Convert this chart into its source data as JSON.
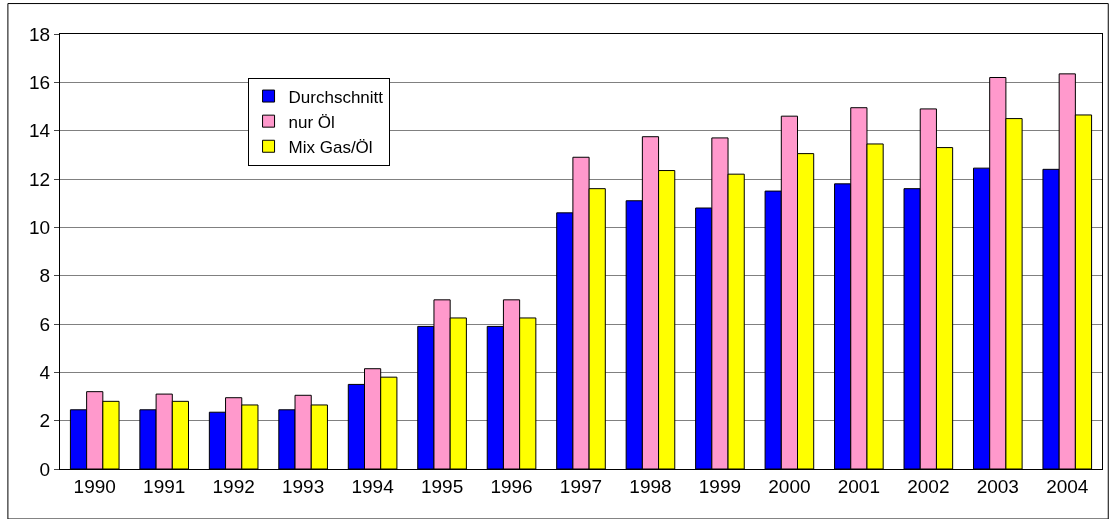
{
  "chart_data": {
    "type": "bar",
    "categories": [
      "1990",
      "1991",
      "1992",
      "1993",
      "1994",
      "1995",
      "1996",
      "1997",
      "1998",
      "1999",
      "2000",
      "2001",
      "2002",
      "2003",
      "2004"
    ],
    "series": [
      {
        "name": "Durchschnitt",
        "color": "#0000ff",
        "values": [
          2.45,
          2.45,
          2.35,
          2.45,
          3.5,
          5.9,
          5.9,
          10.6,
          11.1,
          10.8,
          11.5,
          11.8,
          11.6,
          12.45,
          12.4
        ]
      },
      {
        "name": "nur Öl",
        "color": "#ff99cc",
        "values": [
          3.2,
          3.1,
          2.95,
          3.05,
          4.15,
          7.0,
          7.0,
          12.9,
          13.75,
          13.7,
          14.6,
          14.95,
          14.9,
          16.2,
          16.35
        ]
      },
      {
        "name": "Mix Gas/Öl",
        "color": "#ffff00",
        "values": [
          2.8,
          2.8,
          2.65,
          2.65,
          3.8,
          6.25,
          6.25,
          11.6,
          12.35,
          12.2,
          13.05,
          13.45,
          13.3,
          14.5,
          14.65
        ]
      }
    ],
    "ylim": [
      0,
      18
    ],
    "yticks": [
      0,
      2,
      4,
      6,
      8,
      10,
      12,
      14,
      16,
      18
    ],
    "grid": "y",
    "legend": "top left"
  }
}
